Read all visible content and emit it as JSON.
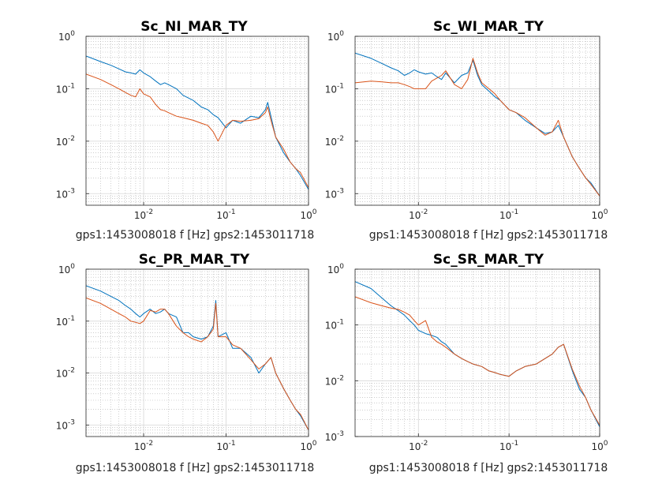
{
  "figure": {
    "background": "#ffffff"
  },
  "colors": {
    "series1": "#0072BD",
    "series2": "#D95319",
    "grid": "#b0b0b0",
    "axis": "#262626"
  },
  "chart_data": [
    {
      "type": "line",
      "title": "Sc_NI_MAR_TY",
      "xlabel": "gps1:1453008018  f [Hz]  gps2:1453011718",
      "ylabel": "",
      "xscale": "log",
      "yscale": "log",
      "xlim": [
        0.002,
        1
      ],
      "ylim": [
        0.0006,
        1
      ],
      "xticks": [
        0.01,
        0.1,
        1
      ],
      "xtick_labels": [
        "10",
        "10",
        "10"
      ],
      "xtick_exponents": [
        "-2",
        "-1",
        "0"
      ],
      "yticks": [
        0.001,
        0.01,
        0.1,
        1
      ],
      "ytick_labels": [
        "10",
        "10",
        "10",
        "10"
      ],
      "ytick_exponents": [
        "-3",
        "-2",
        "-1",
        "0"
      ],
      "grid": true,
      "minor_grid": true,
      "series": [
        {
          "color": "#0072BD",
          "x": [
            0.002,
            0.003,
            0.004,
            0.005,
            0.006,
            0.007,
            0.008,
            0.009,
            0.01,
            0.012,
            0.014,
            0.016,
            0.018,
            0.02,
            0.025,
            0.03,
            0.04,
            0.05,
            0.06,
            0.07,
            0.08,
            0.1,
            0.12,
            0.15,
            0.2,
            0.25,
            0.3,
            0.32,
            0.35,
            0.4,
            0.5,
            0.6,
            0.7,
            0.8,
            1.0
          ],
          "y": [
            0.42,
            0.33,
            0.28,
            0.24,
            0.21,
            0.2,
            0.19,
            0.23,
            0.2,
            0.17,
            0.14,
            0.12,
            0.13,
            0.12,
            0.1,
            0.075,
            0.06,
            0.045,
            0.04,
            0.032,
            0.028,
            0.018,
            0.025,
            0.022,
            0.03,
            0.028,
            0.04,
            0.055,
            0.03,
            0.012,
            0.006,
            0.004,
            0.003,
            0.0022,
            0.0012
          ]
        },
        {
          "color": "#D95319",
          "x": [
            0.002,
            0.003,
            0.004,
            0.005,
            0.006,
            0.007,
            0.008,
            0.009,
            0.01,
            0.012,
            0.014,
            0.016,
            0.018,
            0.02,
            0.025,
            0.03,
            0.04,
            0.05,
            0.06,
            0.07,
            0.08,
            0.1,
            0.12,
            0.15,
            0.2,
            0.25,
            0.3,
            0.32,
            0.35,
            0.4,
            0.5,
            0.6,
            0.7,
            0.8,
            1.0
          ],
          "y": [
            0.19,
            0.15,
            0.12,
            0.1,
            0.085,
            0.075,
            0.07,
            0.1,
            0.08,
            0.07,
            0.05,
            0.04,
            0.038,
            0.035,
            0.03,
            0.028,
            0.025,
            0.022,
            0.02,
            0.015,
            0.01,
            0.02,
            0.025,
            0.024,
            0.025,
            0.027,
            0.035,
            0.045,
            0.025,
            0.012,
            0.007,
            0.004,
            0.003,
            0.0025,
            0.0013
          ]
        }
      ]
    },
    {
      "type": "line",
      "title": "Sc_WI_MAR_TY",
      "xlabel": "gps1:1453008018  f [Hz]  gps2:1453011718",
      "ylabel": "",
      "xscale": "log",
      "yscale": "log",
      "xlim": [
        0.002,
        1
      ],
      "ylim": [
        0.0006,
        1
      ],
      "xticks": [
        0.01,
        0.1,
        1
      ],
      "xtick_labels": [
        "10",
        "10",
        "10"
      ],
      "xtick_exponents": [
        "-2",
        "-1",
        "0"
      ],
      "yticks": [
        0.001,
        0.01,
        0.1,
        1
      ],
      "ytick_labels": [
        "10",
        "10",
        "10",
        "10"
      ],
      "ytick_exponents": [
        "-3",
        "-2",
        "-1",
        "0"
      ],
      "grid": true,
      "minor_grid": true,
      "series": [
        {
          "color": "#0072BD",
          "x": [
            0.002,
            0.003,
            0.004,
            0.005,
            0.006,
            0.007,
            0.008,
            0.009,
            0.01,
            0.012,
            0.014,
            0.016,
            0.018,
            0.02,
            0.025,
            0.03,
            0.035,
            0.04,
            0.045,
            0.05,
            0.06,
            0.07,
            0.08,
            0.1,
            0.12,
            0.15,
            0.2,
            0.25,
            0.3,
            0.35,
            0.4,
            0.5,
            0.6,
            0.7,
            0.8,
            1.0
          ],
          "y": [
            0.48,
            0.38,
            0.3,
            0.25,
            0.22,
            0.18,
            0.2,
            0.23,
            0.21,
            0.19,
            0.2,
            0.17,
            0.15,
            0.2,
            0.13,
            0.18,
            0.2,
            0.35,
            0.18,
            0.12,
            0.09,
            0.07,
            0.06,
            0.04,
            0.035,
            0.025,
            0.018,
            0.014,
            0.015,
            0.02,
            0.012,
            0.005,
            0.003,
            0.002,
            0.0016,
            0.0009
          ]
        },
        {
          "color": "#D95319",
          "x": [
            0.002,
            0.003,
            0.004,
            0.005,
            0.006,
            0.007,
            0.008,
            0.009,
            0.01,
            0.012,
            0.014,
            0.016,
            0.018,
            0.02,
            0.025,
            0.03,
            0.035,
            0.04,
            0.045,
            0.05,
            0.06,
            0.07,
            0.08,
            0.1,
            0.12,
            0.15,
            0.2,
            0.25,
            0.3,
            0.35,
            0.4,
            0.5,
            0.6,
            0.7,
            0.8,
            1.0
          ],
          "y": [
            0.13,
            0.14,
            0.135,
            0.13,
            0.13,
            0.12,
            0.11,
            0.1,
            0.1,
            0.1,
            0.14,
            0.16,
            0.18,
            0.22,
            0.12,
            0.1,
            0.15,
            0.38,
            0.2,
            0.13,
            0.1,
            0.08,
            0.06,
            0.04,
            0.035,
            0.028,
            0.018,
            0.013,
            0.015,
            0.025,
            0.012,
            0.005,
            0.003,
            0.002,
            0.0015,
            0.0009
          ]
        }
      ]
    },
    {
      "type": "line",
      "title": "Sc_PR_MAR_TY",
      "xlabel": "gps1:1453008018  f [Hz]  gps2:1453011718",
      "ylabel": "",
      "xscale": "log",
      "yscale": "log",
      "xlim": [
        0.002,
        1
      ],
      "ylim": [
        0.0006,
        1
      ],
      "xticks": [
        0.01,
        0.1,
        1
      ],
      "xtick_labels": [
        "10",
        "10",
        "10"
      ],
      "xtick_exponents": [
        "-2",
        "-1",
        "0"
      ],
      "yticks": [
        0.001,
        0.01,
        0.1,
        1
      ],
      "ytick_labels": [
        "10",
        "10",
        "10",
        "10"
      ],
      "ytick_exponents": [
        "-3",
        "-2",
        "-1",
        "0"
      ],
      "grid": true,
      "minor_grid": true,
      "series": [
        {
          "color": "#0072BD",
          "x": [
            0.002,
            0.003,
            0.004,
            0.005,
            0.006,
            0.007,
            0.008,
            0.009,
            0.01,
            0.012,
            0.014,
            0.016,
            0.018,
            0.02,
            0.025,
            0.03,
            0.035,
            0.04,
            0.05,
            0.06,
            0.07,
            0.075,
            0.08,
            0.1,
            0.12,
            0.15,
            0.2,
            0.25,
            0.3,
            0.35,
            0.4,
            0.5,
            0.6,
            0.7,
            0.8,
            1.0
          ],
          "y": [
            0.48,
            0.38,
            0.3,
            0.25,
            0.2,
            0.17,
            0.14,
            0.12,
            0.14,
            0.17,
            0.14,
            0.15,
            0.17,
            0.14,
            0.12,
            0.06,
            0.06,
            0.05,
            0.045,
            0.05,
            0.08,
            0.25,
            0.05,
            0.06,
            0.03,
            0.03,
            0.02,
            0.01,
            0.015,
            0.02,
            0.01,
            0.005,
            0.003,
            0.002,
            0.0015,
            0.0008
          ]
        },
        {
          "color": "#D95319",
          "x": [
            0.002,
            0.003,
            0.004,
            0.005,
            0.006,
            0.007,
            0.008,
            0.009,
            0.01,
            0.012,
            0.014,
            0.016,
            0.018,
            0.02,
            0.025,
            0.03,
            0.035,
            0.04,
            0.05,
            0.06,
            0.07,
            0.075,
            0.08,
            0.1,
            0.12,
            0.15,
            0.2,
            0.25,
            0.3,
            0.35,
            0.4,
            0.5,
            0.6,
            0.7,
            0.8,
            1.0
          ],
          "y": [
            0.28,
            0.22,
            0.17,
            0.14,
            0.12,
            0.1,
            0.095,
            0.09,
            0.1,
            0.16,
            0.15,
            0.17,
            0.17,
            0.14,
            0.08,
            0.06,
            0.05,
            0.045,
            0.04,
            0.05,
            0.07,
            0.22,
            0.05,
            0.05,
            0.035,
            0.03,
            0.018,
            0.012,
            0.015,
            0.02,
            0.01,
            0.005,
            0.003,
            0.002,
            0.0016,
            0.0008
          ]
        }
      ]
    },
    {
      "type": "line",
      "title": "Sc_SR_MAR_TY",
      "xlabel": "gps1:1453008018  f [Hz]  gps2:1453011718",
      "ylabel": "",
      "xscale": "log",
      "yscale": "log",
      "xlim": [
        0.002,
        1
      ],
      "ylim": [
        0.001,
        1
      ],
      "xticks": [
        0.01,
        0.1,
        1
      ],
      "xtick_labels": [
        "10",
        "10",
        "10"
      ],
      "xtick_exponents": [
        "-2",
        "-1",
        "0"
      ],
      "yticks": [
        0.001,
        0.01,
        0.1,
        1
      ],
      "ytick_labels": [
        "10",
        "10",
        "10",
        "10"
      ],
      "ytick_exponents": [
        "-3",
        "-2",
        "-1",
        "0"
      ],
      "grid": true,
      "minor_grid": true,
      "series": [
        {
          "color": "#0072BD",
          "x": [
            0.002,
            0.003,
            0.004,
            0.005,
            0.006,
            0.007,
            0.008,
            0.009,
            0.01,
            0.012,
            0.014,
            0.016,
            0.018,
            0.02,
            0.025,
            0.03,
            0.035,
            0.04,
            0.05,
            0.06,
            0.07,
            0.08,
            0.1,
            0.12,
            0.15,
            0.2,
            0.25,
            0.3,
            0.35,
            0.4,
            0.5,
            0.6,
            0.7,
            0.8,
            1.0
          ],
          "y": [
            0.6,
            0.45,
            0.3,
            0.22,
            0.18,
            0.15,
            0.12,
            0.1,
            0.08,
            0.07,
            0.065,
            0.06,
            0.05,
            0.045,
            0.03,
            0.025,
            0.022,
            0.02,
            0.018,
            0.015,
            0.014,
            0.013,
            0.012,
            0.015,
            0.018,
            0.02,
            0.025,
            0.03,
            0.04,
            0.045,
            0.015,
            0.007,
            0.005,
            0.003,
            0.0015
          ]
        },
        {
          "color": "#D95319",
          "x": [
            0.002,
            0.003,
            0.004,
            0.005,
            0.006,
            0.007,
            0.008,
            0.009,
            0.01,
            0.012,
            0.014,
            0.016,
            0.018,
            0.02,
            0.025,
            0.03,
            0.035,
            0.04,
            0.05,
            0.06,
            0.07,
            0.08,
            0.1,
            0.12,
            0.15,
            0.2,
            0.25,
            0.3,
            0.35,
            0.4,
            0.5,
            0.6,
            0.7,
            0.8,
            1.0
          ],
          "y": [
            0.32,
            0.25,
            0.22,
            0.2,
            0.19,
            0.17,
            0.15,
            0.12,
            0.1,
            0.12,
            0.06,
            0.05,
            0.045,
            0.04,
            0.03,
            0.025,
            0.022,
            0.02,
            0.018,
            0.015,
            0.014,
            0.013,
            0.012,
            0.015,
            0.018,
            0.02,
            0.025,
            0.03,
            0.04,
            0.045,
            0.016,
            0.008,
            0.005,
            0.003,
            0.0016
          ]
        }
      ]
    }
  ]
}
